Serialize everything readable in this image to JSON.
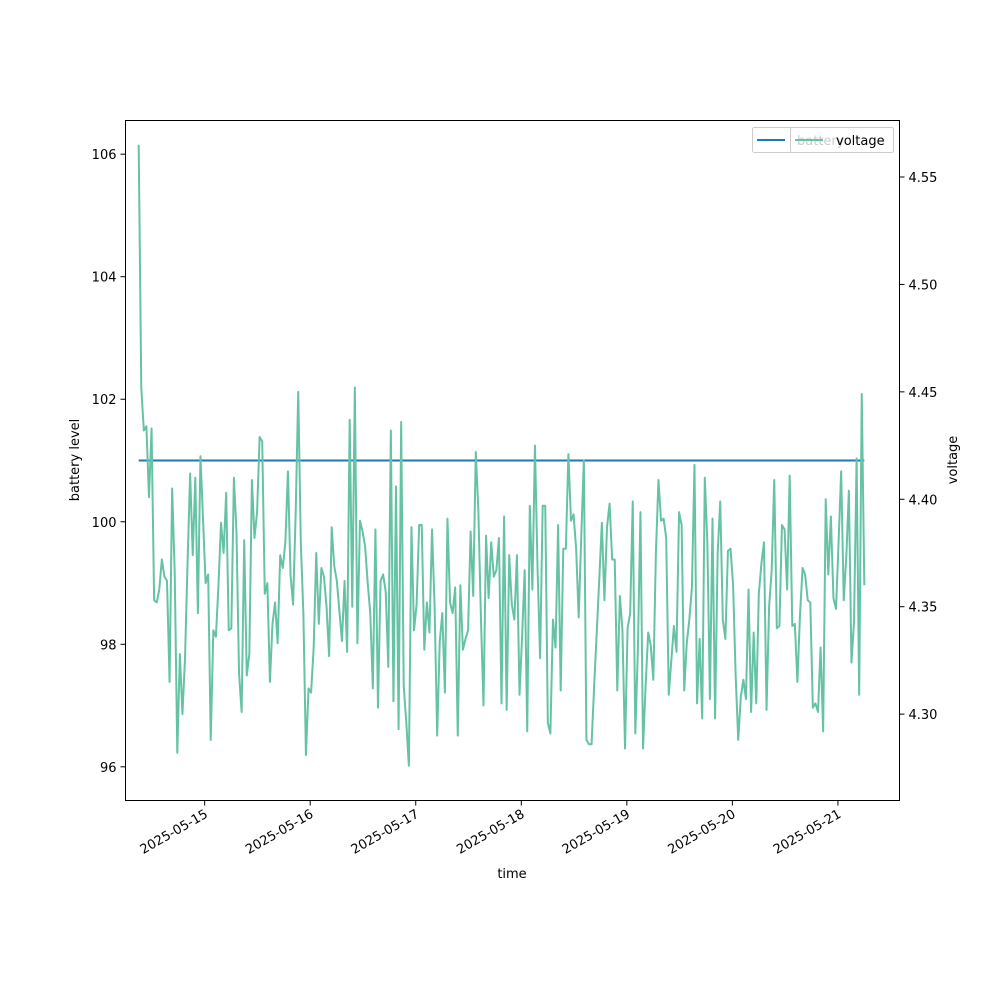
{
  "chart_data": {
    "type": "line",
    "xlabel": "time",
    "ylabel_left": "battery level",
    "ylabel_right": "voltage",
    "x_range": [
      "2025-05-14T06:00",
      "2025-05-21T14:00"
    ],
    "x_ticks": [
      "2025-05-15",
      "2025-05-16",
      "2025-05-17",
      "2025-05-18",
      "2025-05-19",
      "2025-05-20",
      "2025-05-21"
    ],
    "ylim_left": [
      95.45,
      106.55
    ],
    "y_ticks_left": [
      96,
      98,
      100,
      102,
      104,
      106
    ],
    "ylim_right": [
      4.2598,
      4.5763
    ],
    "y_ticks_right": [
      4.3,
      4.35,
      4.4,
      4.45,
      4.5,
      4.55
    ],
    "y_ticks_right_labels": [
      "4.30",
      "4.35",
      "4.40",
      "4.45",
      "4.50",
      "4.55"
    ],
    "grid": false,
    "legends": [
      {
        "placement": "top-right",
        "entries": [
          {
            "name": "battery",
            "color": "#1f77b4"
          }
        ]
      },
      {
        "placement": "top-right",
        "entries": [
          {
            "name": "voltage",
            "color": "#66c2a5"
          }
        ]
      }
    ],
    "series": [
      {
        "name": "battery",
        "axis": "left",
        "color": "#1f77b4",
        "x": [
          "2025-05-14T09:00",
          "2025-05-21T06:00"
        ],
        "values": [
          101,
          101
        ]
      },
      {
        "name": "voltage",
        "axis": "right",
        "color": "#66c2a5",
        "x_start": "2025-05-14T09:00",
        "x_end": "2025-05-21T06:00",
        "values": [
          4.565,
          4.452,
          4.432,
          4.434,
          4.401,
          4.433,
          4.353,
          4.352,
          4.358,
          4.372,
          4.364,
          4.362,
          4.315,
          4.405,
          4.366,
          4.282,
          4.328,
          4.3,
          4.326,
          4.371,
          4.412,
          4.374,
          4.41,
          4.347,
          4.42,
          4.391,
          4.361,
          4.365,
          4.288,
          4.339,
          4.336,
          4.36,
          4.389,
          4.375,
          4.403,
          4.339,
          4.34,
          4.41,
          4.385,
          4.319,
          4.301,
          4.381,
          4.318,
          4.328,
          4.409,
          4.382,
          4.394,
          4.429,
          4.427,
          4.356,
          4.361,
          4.315,
          4.342,
          4.352,
          4.333,
          4.374,
          4.368,
          4.38,
          4.413,
          4.365,
          4.351,
          4.393,
          4.45,
          4.38,
          4.347,
          4.281,
          4.312,
          4.31,
          4.331,
          4.375,
          4.342,
          4.368,
          4.364,
          4.35,
          4.327,
          4.387,
          4.369,
          4.362,
          4.348,
          4.334,
          4.362,
          4.329,
          4.437,
          4.35,
          4.452,
          4.333,
          4.39,
          4.385,
          4.378,
          4.361,
          4.347,
          4.312,
          4.386,
          4.303,
          4.362,
          4.365,
          4.357,
          4.322,
          4.432,
          4.306,
          4.406,
          4.293,
          4.436,
          4.313,
          4.296,
          4.276,
          4.387,
          4.339,
          4.351,
          4.388,
          4.388,
          4.33,
          4.352,
          4.338,
          4.386,
          4.35,
          4.29,
          4.334,
          4.347,
          4.31,
          4.391,
          4.352,
          4.347,
          4.359,
          4.29,
          4.36,
          4.33,
          4.335,
          4.339,
          4.385,
          4.355,
          4.422,
          4.395,
          4.345,
          4.304,
          4.383,
          4.354,
          4.38,
          4.364,
          4.367,
          4.382,
          4.305,
          4.392,
          4.302,
          4.374,
          4.351,
          4.344,
          4.374,
          4.309,
          4.336,
          4.367,
          4.292,
          4.397,
          4.358,
          4.425,
          4.368,
          4.326,
          4.397,
          4.397,
          4.296,
          4.291,
          4.344,
          4.331,
          4.388,
          4.311,
          4.377,
          4.377,
          4.421,
          4.39,
          4.393,
          4.377,
          4.345,
          4.383,
          4.418,
          4.288,
          4.286,
          4.286,
          4.313,
          4.338,
          4.363,
          4.389,
          4.353,
          4.387,
          4.398,
          4.372,
          4.372,
          4.311,
          4.355,
          4.339,
          4.284,
          4.34,
          4.347,
          4.399,
          4.291,
          4.33,
          4.394,
          4.284,
          4.313,
          4.338,
          4.332,
          4.316,
          4.375,
          4.409,
          4.39,
          4.391,
          4.382,
          4.309,
          4.325,
          4.341,
          4.329,
          4.394,
          4.388,
          4.311,
          4.333,
          4.344,
          4.359,
          4.416,
          4.305,
          4.335,
          4.298,
          4.41,
          4.38,
          4.307,
          4.391,
          4.298,
          4.375,
          4.399,
          4.344,
          4.335,
          4.376,
          4.377,
          4.36,
          4.318,
          4.288,
          4.308,
          4.316,
          4.307,
          4.358,
          4.301,
          4.338,
          4.305,
          4.356,
          4.37,
          4.38,
          4.302,
          4.35,
          4.367,
          4.409,
          4.34,
          4.341,
          4.388,
          4.386,
          4.358,
          4.411,
          4.341,
          4.342,
          4.315,
          4.346,
          4.368,
          4.365,
          4.353,
          4.352,
          4.303,
          4.305,
          4.301,
          4.331,
          4.292,
          4.4,
          4.365,
          4.392,
          4.354,
          4.349,
          4.38,
          4.413,
          4.353,
          4.373,
          4.404,
          4.324,
          4.343,
          4.419,
          4.309,
          4.449,
          4.36
        ]
      }
    ]
  }
}
